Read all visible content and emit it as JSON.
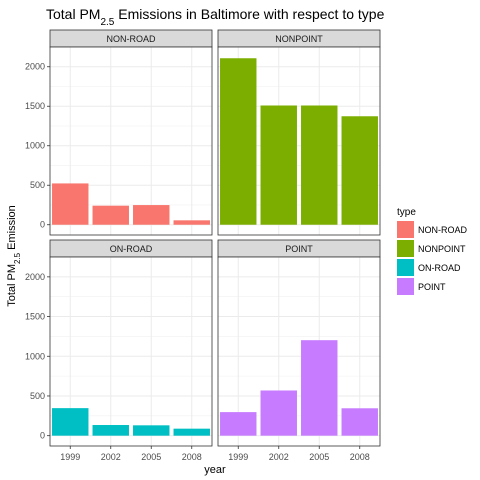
{
  "chart_data": {
    "type": "bar",
    "title": {
      "prefix": "Total PM",
      "subscript": "2.5",
      "suffix": "  Emissions in Baltimore with respect to type"
    },
    "xlabel": "year",
    "ylabel": {
      "prefix": "Total PM",
      "subscript": "2.5",
      "suffix": " Emission"
    },
    "categories": [
      "1999",
      "2002",
      "2005",
      "2008"
    ],
    "ylim": [
      -130,
      2250
    ],
    "yticks": [
      0,
      500,
      1000,
      1500,
      2000
    ],
    "grid": true,
    "legend": {
      "title": "type",
      "position": "right"
    },
    "panels": [
      {
        "name": "NON-ROAD",
        "color": "#F8766D",
        "values": [
          522.94,
          240.85,
          248.93,
          55.82
        ]
      },
      {
        "name": "NONPOINT",
        "color": "#7CAE00",
        "values": [
          2107.63,
          1509.5,
          1509.5,
          1373.21
        ]
      },
      {
        "name": "ON-ROAD",
        "color": "#00BFC4",
        "values": [
          346.82,
          134.31,
          130.43,
          88.28
        ]
      },
      {
        "name": "POINT",
        "color": "#C77CFF",
        "values": [
          296.8,
          569.26,
          1202.49,
          344.98
        ]
      }
    ]
  }
}
